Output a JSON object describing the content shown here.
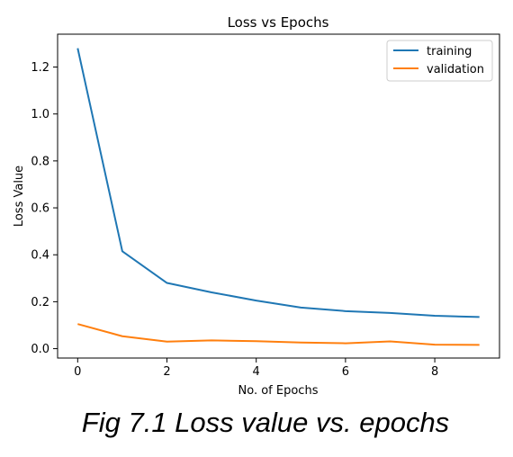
{
  "caption": "Fig 7.1 Loss value vs. epochs",
  "chart_data": {
    "type": "line",
    "title": "Loss vs Epochs",
    "xlabel": "No. of Epochs",
    "ylabel": "Loss Value",
    "xlim": [
      -0.45,
      9.45
    ],
    "ylim": [
      -0.04,
      1.34
    ],
    "x_ticks": [
      0,
      2,
      4,
      6,
      8
    ],
    "y_ticks": [
      0.0,
      0.2,
      0.4,
      0.6,
      0.8,
      1.0,
      1.2
    ],
    "x_tick_labels": [
      "0",
      "2",
      "4",
      "6",
      "8"
    ],
    "y_tick_labels": [
      "0.0",
      "0.2",
      "0.4",
      "0.6",
      "0.8",
      "1.0",
      "1.2"
    ],
    "grid": false,
    "legend_position": "top-right",
    "x": [
      0,
      1,
      2,
      3,
      4,
      5,
      6,
      7,
      8,
      9
    ],
    "series": [
      {
        "name": "training",
        "color": "#1f77b4",
        "values": [
          1.28,
          0.415,
          0.28,
          0.24,
          0.205,
          0.175,
          0.16,
          0.152,
          0.14,
          0.135
        ]
      },
      {
        "name": "validation",
        "color": "#ff7f0e",
        "values": [
          0.105,
          0.053,
          0.03,
          0.035,
          0.032,
          0.026,
          0.023,
          0.031,
          0.017,
          0.016
        ]
      }
    ]
  }
}
